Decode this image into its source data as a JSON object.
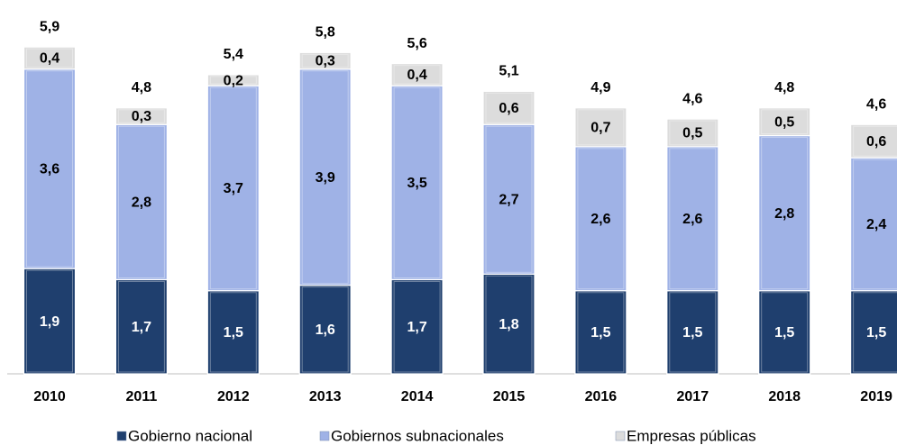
{
  "chart_data": {
    "type": "bar",
    "stacked": true,
    "categories": [
      "2010",
      "2011",
      "2012",
      "2013",
      "2014",
      "2015",
      "2016",
      "2017",
      "2018",
      "2019"
    ],
    "series": [
      {
        "name": "Gobierno nacional",
        "color": "#1f3f6e",
        "label_color": "#ffffff",
        "values": [
          1.9,
          1.7,
          1.5,
          1.6,
          1.7,
          1.8,
          1.5,
          1.5,
          1.5,
          1.5
        ],
        "value_labels": [
          "1,9",
          "1,7",
          "1,5",
          "1,6",
          "1,7",
          "1,8",
          "1,5",
          "1,5",
          "1,5",
          "1,5"
        ]
      },
      {
        "name": "Gobiernos subnacionales",
        "color": "#9fb2e6",
        "label_color": "#000000",
        "values": [
          3.6,
          2.8,
          3.7,
          3.9,
          3.5,
          2.7,
          2.6,
          2.6,
          2.8,
          2.4
        ],
        "value_labels": [
          "3,6",
          "2,8",
          "3,7",
          "3,9",
          "3,5",
          "2,7",
          "2,6",
          "2,6",
          "2,8",
          "2,4"
        ]
      },
      {
        "name": "Empresas públicas",
        "color": "#dcdcdc",
        "label_color": "#000000",
        "values": [
          0.4,
          0.3,
          0.2,
          0.3,
          0.4,
          0.6,
          0.7,
          0.5,
          0.5,
          0.6
        ],
        "value_labels": [
          "0,4",
          "0,3",
          "0,2",
          "0,3",
          "0,4",
          "0,6",
          "0,7",
          "0,5",
          "0,5",
          "0,6"
        ]
      }
    ],
    "totals": [
      5.9,
      4.8,
      5.4,
      5.8,
      5.6,
      5.1,
      4.9,
      4.6,
      4.8,
      4.6
    ],
    "total_labels": [
      "5,9",
      "4,8",
      "5,4",
      "5,8",
      "5,6",
      "5,1",
      "4,9",
      "4,6",
      "4,8",
      "4,6"
    ],
    "legend": "bottom"
  }
}
